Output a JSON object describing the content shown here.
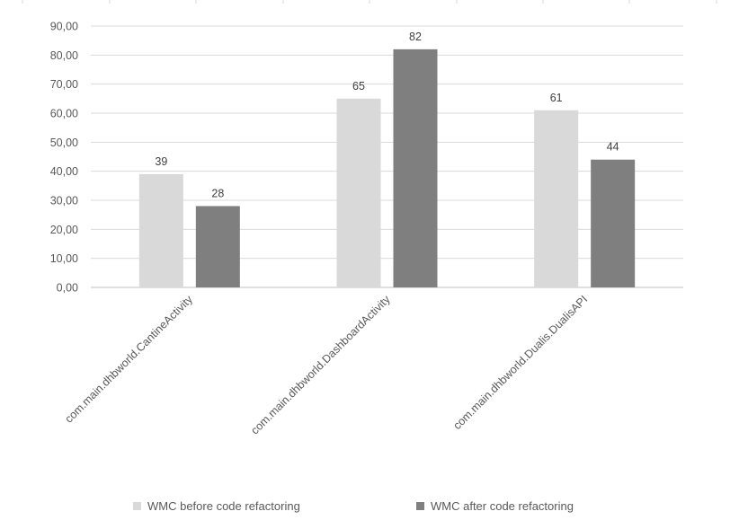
{
  "chart_data": {
    "type": "bar",
    "categories": [
      "com.main.dhbworld.CantineActivity",
      "com.main.dhbworld.DashboardActivity",
      "com.main.dhbworld.Dualis.DualisAPI"
    ],
    "series": [
      {
        "name": "WMC before code refactoring",
        "values": [
          39,
          65,
          61
        ],
        "color": "#d9d9d9"
      },
      {
        "name": "WMC after code refactoring",
        "values": [
          28,
          82,
          44
        ],
        "color": "#7f7f7f"
      }
    ],
    "ylim": [
      0,
      90
    ],
    "yticks": [
      "0,00",
      "10,00",
      "20,00",
      "30,00",
      "40,00",
      "50,00",
      "60,00",
      "70,00",
      "80,00",
      "90,00"
    ],
    "title": "",
    "xlabel": "",
    "ylabel": "",
    "grid": true,
    "legend_position": "bottom"
  }
}
